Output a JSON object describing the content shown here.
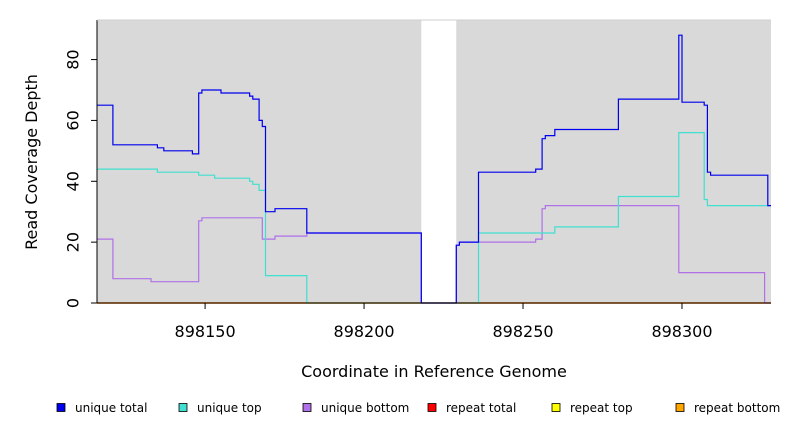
{
  "chart_data": {
    "type": "line",
    "title": "",
    "xlabel": "Coordinate in Reference Genome",
    "ylabel": "Read Coverage Depth",
    "xlim": [
      898116,
      898328
    ],
    "ylim": [
      0,
      93
    ],
    "xticks": [
      898150,
      898200,
      898250,
      898300
    ],
    "yticks": [
      0,
      20,
      40,
      60,
      80
    ],
    "grid": false,
    "background": "#d9d9d9",
    "gap_region": [
      898218,
      898229
    ],
    "legend_position": "bottom",
    "series": [
      {
        "name": "unique total",
        "color": "#0000ee",
        "x": [
          898116,
          898121,
          898121,
          898135,
          898135,
          898137,
          898137,
          898146,
          898146,
          898148,
          898148,
          898149,
          898149,
          898153,
          898153,
          898155,
          898155,
          898164,
          898164,
          898165,
          898165,
          898167,
          898167,
          898168,
          898168,
          898169,
          898169,
          898172,
          898172,
          898182,
          898182,
          898218,
          898218,
          898229,
          898229,
          898230,
          898230,
          898236,
          898236,
          898254,
          898254,
          898256,
          898256,
          898257,
          898257,
          898260,
          898260,
          898280,
          898280,
          898299,
          898299,
          898300,
          898300,
          898307,
          898307,
          898308,
          898308,
          898309,
          898309,
          898327,
          898327,
          898328
        ],
        "y": [
          65,
          65,
          52,
          52,
          51,
          51,
          50,
          50,
          49,
          49,
          69,
          69,
          70,
          70,
          70,
          70,
          69,
          69,
          68,
          68,
          67,
          67,
          60,
          60,
          58,
          58,
          30,
          30,
          31,
          31,
          23,
          23,
          0,
          0,
          19,
          19,
          20,
          20,
          43,
          43,
          44,
          44,
          54,
          54,
          55,
          55,
          57,
          57,
          67,
          67,
          88,
          88,
          66,
          66,
          65,
          65,
          43,
          43,
          42,
          42,
          32,
          32
        ]
      },
      {
        "name": "unique top",
        "color": "#40e0d0",
        "x": [
          898116,
          898135,
          898135,
          898145,
          898145,
          898148,
          898148,
          898153,
          898153,
          898164,
          898164,
          898165,
          898165,
          898167,
          898167,
          898169,
          898169,
          898182,
          898182,
          898218,
          898218,
          898236,
          898236,
          898254,
          898254,
          898260,
          898260,
          898280,
          898280,
          898299,
          898299,
          898307,
          898307,
          898308,
          898308,
          898328
        ],
        "y": [
          44,
          44,
          43,
          43,
          43,
          43,
          42,
          42,
          41,
          41,
          40,
          40,
          39,
          39,
          37,
          37,
          9,
          9,
          0,
          0,
          0,
          0,
          23,
          23,
          23,
          23,
          25,
          25,
          35,
          35,
          56,
          56,
          34,
          34,
          32,
          32
        ]
      },
      {
        "name": "unique bottom",
        "color": "#b070e8",
        "x": [
          898116,
          898121,
          898121,
          898133,
          898133,
          898148,
          898148,
          898149,
          898149,
          898168,
          898168,
          898172,
          898172,
          898182,
          898182,
          898218,
          898218,
          898229,
          898229,
          898230,
          898230,
          898254,
          898254,
          898256,
          898256,
          898257,
          898257,
          898299,
          898299,
          898326,
          898326,
          898328
        ],
        "y": [
          21,
          21,
          8,
          8,
          7,
          7,
          27,
          27,
          28,
          28,
          21,
          21,
          22,
          22,
          23,
          23,
          0,
          0,
          19,
          19,
          20,
          20,
          21,
          21,
          31,
          31,
          32,
          32,
          10,
          10,
          0,
          0
        ]
      },
      {
        "name": "repeat total",
        "color": "#ff0000",
        "x": [
          898116,
          898328
        ],
        "y": [
          0,
          0
        ]
      },
      {
        "name": "repeat top",
        "color": "#ffff00",
        "x": [
          898116,
          898328
        ],
        "y": [
          0,
          0
        ]
      },
      {
        "name": "repeat bottom",
        "color": "#ffa500",
        "x": [
          898116,
          898328
        ],
        "y": [
          0,
          0
        ]
      }
    ]
  }
}
